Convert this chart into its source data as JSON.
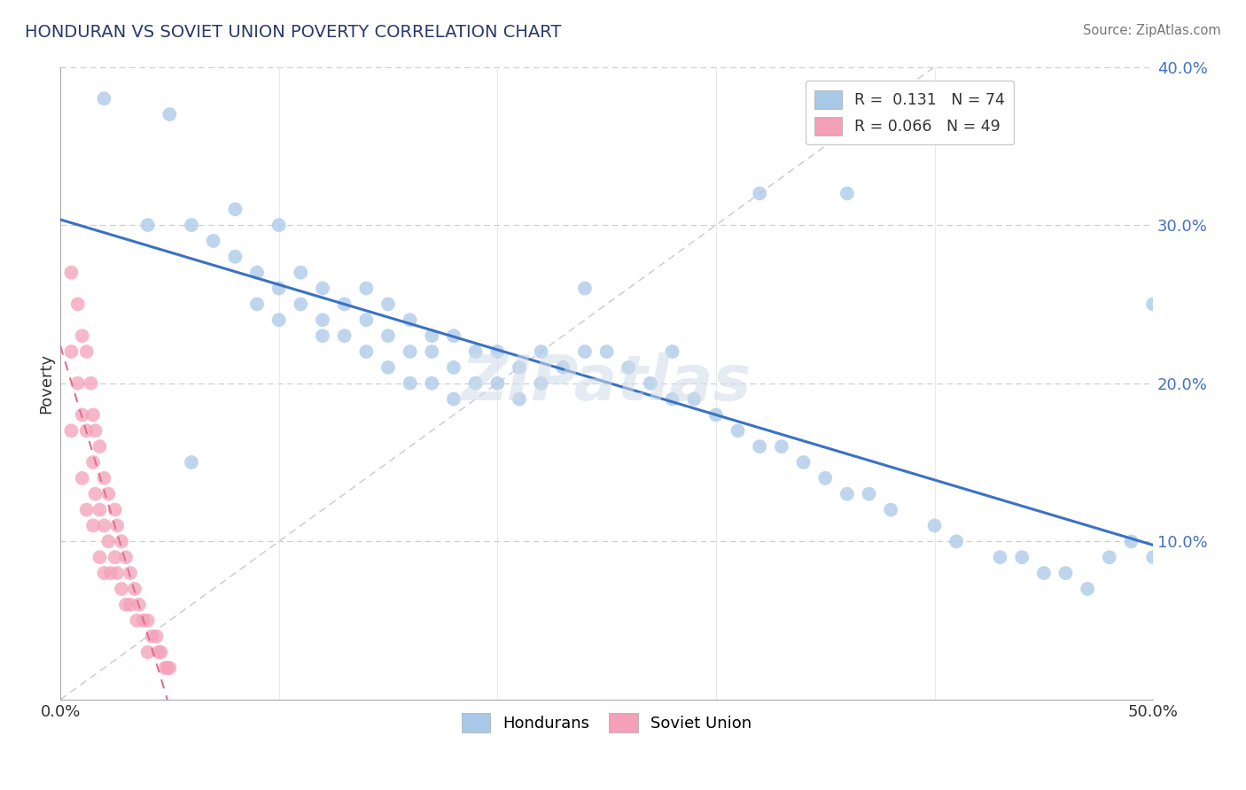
{
  "title": "HONDURAN VS SOVIET UNION POVERTY CORRELATION CHART",
  "source": "Source: ZipAtlas.com",
  "ylabel": "Poverty",
  "hondurans_R": 0.131,
  "hondurans_N": 74,
  "soviet_R": 0.066,
  "soviet_N": 49,
  "xlim": [
    0.0,
    0.5
  ],
  "ylim": [
    0.0,
    0.4
  ],
  "blue_color": "#a8c8e8",
  "pink_color": "#f4a0b8",
  "blue_line_color": "#3a72c4",
  "pink_line_color": "#e07090",
  "ref_line_color": "#c8c8d8",
  "axis_label_color": "#4472c4",
  "title_color": "#2a3a6a",
  "watermark_color": "#d0dce8",
  "watermark_text": "ZIPatlas",
  "blue_x": [
    0.02,
    0.04,
    0.05,
    0.06,
    0.07,
    0.08,
    0.08,
    0.09,
    0.09,
    0.1,
    0.1,
    0.1,
    0.11,
    0.11,
    0.12,
    0.12,
    0.12,
    0.13,
    0.13,
    0.14,
    0.14,
    0.14,
    0.15,
    0.15,
    0.15,
    0.16,
    0.16,
    0.16,
    0.17,
    0.17,
    0.17,
    0.18,
    0.18,
    0.18,
    0.19,
    0.19,
    0.2,
    0.2,
    0.21,
    0.21,
    0.22,
    0.22,
    0.23,
    0.24,
    0.25,
    0.26,
    0.27,
    0.28,
    0.29,
    0.3,
    0.31,
    0.32,
    0.33,
    0.34,
    0.35,
    0.36,
    0.37,
    0.38,
    0.4,
    0.41,
    0.43,
    0.44,
    0.45,
    0.46,
    0.47,
    0.48,
    0.49,
    0.5,
    0.5,
    0.36,
    0.24,
    0.28,
    0.32,
    0.06
  ],
  "blue_y": [
    0.38,
    0.3,
    0.37,
    0.3,
    0.29,
    0.31,
    0.28,
    0.27,
    0.25,
    0.3,
    0.26,
    0.24,
    0.27,
    0.25,
    0.26,
    0.24,
    0.23,
    0.25,
    0.23,
    0.26,
    0.24,
    0.22,
    0.25,
    0.23,
    0.21,
    0.24,
    0.22,
    0.2,
    0.23,
    0.22,
    0.2,
    0.23,
    0.21,
    0.19,
    0.22,
    0.2,
    0.22,
    0.2,
    0.21,
    0.19,
    0.22,
    0.2,
    0.21,
    0.22,
    0.22,
    0.21,
    0.2,
    0.19,
    0.19,
    0.18,
    0.17,
    0.16,
    0.16,
    0.15,
    0.14,
    0.13,
    0.13,
    0.12,
    0.11,
    0.1,
    0.09,
    0.09,
    0.08,
    0.08,
    0.07,
    0.09,
    0.1,
    0.09,
    0.25,
    0.32,
    0.26,
    0.22,
    0.32,
    0.15
  ],
  "pink_x": [
    0.005,
    0.005,
    0.005,
    0.008,
    0.008,
    0.01,
    0.01,
    0.01,
    0.012,
    0.012,
    0.012,
    0.014,
    0.015,
    0.015,
    0.015,
    0.016,
    0.016,
    0.018,
    0.018,
    0.018,
    0.02,
    0.02,
    0.02,
    0.022,
    0.022,
    0.023,
    0.025,
    0.025,
    0.026,
    0.026,
    0.028,
    0.028,
    0.03,
    0.03,
    0.032,
    0.032,
    0.034,
    0.035,
    0.036,
    0.038,
    0.04,
    0.04,
    0.042,
    0.044,
    0.045,
    0.046,
    0.048,
    0.049,
    0.05
  ],
  "pink_y": [
    0.27,
    0.22,
    0.17,
    0.25,
    0.2,
    0.23,
    0.18,
    0.14,
    0.22,
    0.17,
    0.12,
    0.2,
    0.18,
    0.15,
    0.11,
    0.17,
    0.13,
    0.16,
    0.12,
    0.09,
    0.14,
    0.11,
    0.08,
    0.13,
    0.1,
    0.08,
    0.12,
    0.09,
    0.11,
    0.08,
    0.1,
    0.07,
    0.09,
    0.06,
    0.08,
    0.06,
    0.07,
    0.05,
    0.06,
    0.05,
    0.05,
    0.03,
    0.04,
    0.04,
    0.03,
    0.03,
    0.02,
    0.02,
    0.02
  ]
}
